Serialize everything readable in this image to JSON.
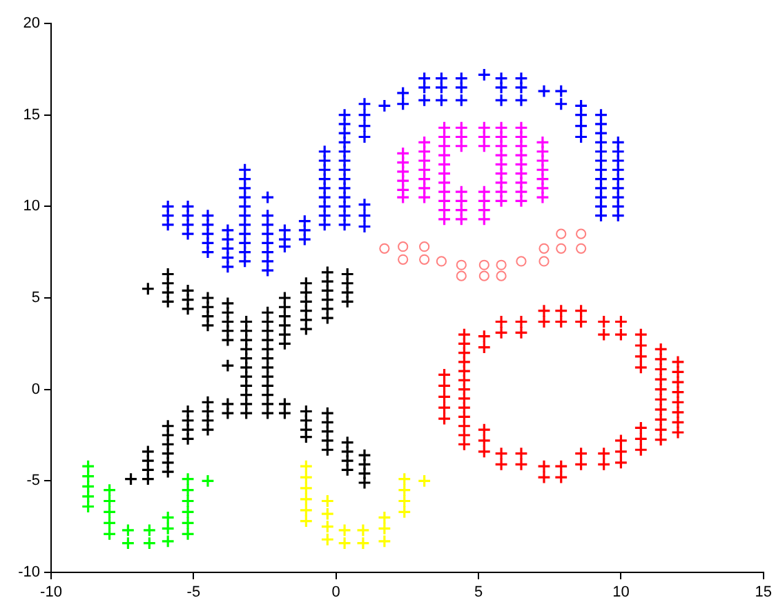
{
  "chart_data": {
    "type": "scatter",
    "xlim": [
      -10,
      15
    ],
    "xticks": [
      -10,
      -5,
      0,
      5,
      10,
      15
    ],
    "ylim": [
      -10,
      20
    ],
    "yticks": [
      -10,
      -5,
      0,
      5,
      10,
      15,
      20
    ],
    "grid": false,
    "legend": false,
    "series": [
      {
        "color": "#0000ff",
        "marker": "cross",
        "x": [
          -5.9,
          -5.9,
          -5.9,
          -5.2,
          -5.2,
          -5.2,
          -5.2,
          -4.5,
          -4.5,
          -4.5,
          -4.5,
          -4.5,
          -3.8,
          -3.8,
          -3.8,
          -3.8,
          -3.8,
          -3.2,
          -3.2,
          -3.2,
          -3.2,
          -3.2,
          -3.2,
          -3.2,
          -3.2,
          -3.2,
          -3.2,
          -3.2,
          -2.4,
          -2.4,
          -2.4,
          -2.4,
          -2.4,
          -2.4,
          -2.4,
          -2.4,
          -1.8,
          -1.8,
          -1.8,
          -1.1,
          -1.1,
          -1.1,
          -0.4,
          -0.4,
          -0.4,
          -0.4,
          -0.4,
          -0.4,
          -0.4,
          -0.4,
          -0.4,
          0.3,
          0.3,
          0.3,
          0.3,
          0.3,
          0.3,
          0.3,
          0.3,
          0.3,
          0.3,
          0.3,
          0.3,
          0.3,
          1.0,
          1.0,
          1.0,
          1.0,
          1.0,
          1.0,
          1.0,
          1.7,
          2.35,
          2.35,
          3.1,
          3.1,
          3.1,
          3.7,
          3.7,
          3.7,
          4.4,
          4.4,
          4.4,
          5.2,
          5.8,
          5.8,
          5.8,
          6.5,
          6.5,
          6.5,
          7.3,
          7.9,
          7.9,
          8.6,
          8.6,
          8.6,
          8.6,
          9.3,
          9.3,
          9.3,
          9.3,
          9.3,
          9.3,
          9.3,
          9.3,
          9.3,
          9.3,
          9.3,
          9.3,
          9.9,
          9.9,
          9.9,
          9.9,
          9.9,
          9.9,
          9.9,
          9.9,
          9.9
        ],
        "values": [
          10,
          9.5,
          9,
          10,
          9.5,
          9,
          8.5,
          9.5,
          9,
          8.5,
          8,
          7.5,
          8.7,
          8.2,
          7.7,
          7.2,
          6.7,
          12,
          11.5,
          11,
          10.5,
          10,
          9.5,
          9,
          8.5,
          8,
          7.5,
          7,
          10.5,
          9.5,
          9,
          8.5,
          8,
          7.5,
          7,
          6.5,
          8.7,
          8.2,
          7.8,
          9.2,
          8.7,
          8.2,
          13,
          12.5,
          12,
          11.5,
          11,
          10.5,
          10,
          9.5,
          9,
          15,
          14.5,
          14,
          13.5,
          13,
          12.5,
          12,
          11.5,
          11,
          10.5,
          10,
          9.5,
          9,
          15.6,
          15,
          14.4,
          13.8,
          10.1,
          9.5,
          8.9,
          15.5,
          16.2,
          15.6,
          17,
          16.5,
          15.8,
          17,
          16.5,
          15.8,
          17,
          16.5,
          15.8,
          17.2,
          17,
          16.5,
          15.8,
          17,
          16.5,
          15.8,
          16.3,
          16.3,
          15.6,
          15.5,
          15,
          14.4,
          13.8,
          15,
          14.5,
          14,
          13.5,
          13,
          12.5,
          12,
          11.5,
          11,
          10.5,
          10,
          9.5,
          13.5,
          13,
          12.5,
          12,
          11.5,
          11,
          10.5,
          10,
          9.5
        ]
      },
      {
        "color": "#ff00ff",
        "marker": "cross",
        "x": [
          2.35,
          2.35,
          2.35,
          2.35,
          2.35,
          2.35,
          3.1,
          3.1,
          3.1,
          3.1,
          3.1,
          3.1,
          3.1,
          3.8,
          3.8,
          3.8,
          3.8,
          3.8,
          3.8,
          3.8,
          3.8,
          3.8,
          3.8,
          3.8,
          4.4,
          4.4,
          4.4,
          4.4,
          4.4,
          4.4,
          4.4,
          5.2,
          5.2,
          5.2,
          5.2,
          5.2,
          5.2,
          5.2,
          5.8,
          5.8,
          5.8,
          5.8,
          5.8,
          5.8,
          5.8,
          5.8,
          5.8,
          6.5,
          6.5,
          6.5,
          6.5,
          6.5,
          6.5,
          6.5,
          6.5,
          6.5,
          7.25,
          7.25,
          7.25,
          7.25,
          7.25,
          7.25,
          7.25
        ],
        "values": [
          12.9,
          12.4,
          11.9,
          11.4,
          10.9,
          10.5,
          13.5,
          13,
          12.5,
          12,
          11.5,
          11,
          10.5,
          14.3,
          13.8,
          13.3,
          12.8,
          12.3,
          11.8,
          11.3,
          10.8,
          10.3,
          9.8,
          9.3,
          14.3,
          13.8,
          13.3,
          10.8,
          10.3,
          9.8,
          9.3,
          14.3,
          13.8,
          13.3,
          10.8,
          10.3,
          9.8,
          9.3,
          14.3,
          13.8,
          13.3,
          12.8,
          12.3,
          11.8,
          11.3,
          10.8,
          10.3,
          14.3,
          13.8,
          13.3,
          12.8,
          12.3,
          11.8,
          11.3,
          10.8,
          10.3,
          13.5,
          13,
          12.5,
          12,
          11.5,
          11,
          10.5
        ]
      },
      {
        "color": "#ff8080",
        "marker": "circle",
        "x": [
          1.7,
          2.35,
          2.35,
          3.1,
          3.1,
          3.7,
          4.4,
          4.4,
          5.2,
          5.2,
          5.8,
          5.8,
          6.5,
          7.3,
          7.3,
          7.9,
          7.9,
          8.6,
          8.6
        ],
        "values": [
          7.7,
          7.8,
          7.1,
          7.8,
          7.1,
          7,
          6.8,
          6.2,
          6.8,
          6.2,
          6.8,
          6.2,
          7,
          7.7,
          7,
          8.5,
          7.7,
          8.5,
          7.7
        ]
      },
      {
        "color": "#000000",
        "marker": "cross",
        "x": [
          -6.6,
          -5.9,
          -5.9,
          -5.9,
          -5.9,
          -5.2,
          -5.2,
          -5.2,
          -4.5,
          -4.5,
          -4.5,
          -4.5,
          -3.8,
          -3.8,
          -3.8,
          -3.8,
          -3.8,
          -3.8,
          -3.15,
          -3.15,
          -3.15,
          -3.15,
          -3.15,
          -3.15,
          -3.15,
          -3.15,
          -3.15,
          -3.15,
          -3.15,
          -2.4,
          -2.4,
          -2.4,
          -2.4,
          -2.4,
          -2.4,
          -2.4,
          -2.4,
          -2.4,
          -2.4,
          -2.4,
          -2.4,
          -1.8,
          -1.8,
          -1.8,
          -1.8,
          -1.8,
          -1.8,
          -1.8,
          -1.8,
          -1.05,
          -1.05,
          -1.05,
          -1.05,
          -1.05,
          -1.05,
          -0.3,
          -0.3,
          -0.3,
          -0.3,
          -0.3,
          -0.3,
          0.4,
          0.4,
          0.4,
          0.4,
          -3.8,
          -3.8,
          -4.5,
          -4.5,
          -4.5,
          -4.5,
          -5.2,
          -5.2,
          -5.2,
          -5.2,
          -5.9,
          -5.9,
          -5.9,
          -5.9,
          -5.9,
          -5.9,
          -6.6,
          -6.6,
          -6.6,
          -6.6,
          -7.2,
          -1.05,
          -1.05,
          -1.05,
          -1.05,
          -0.3,
          -0.3,
          -0.3,
          -0.3,
          -0.3,
          0.4,
          0.4,
          0.4,
          0.4,
          1.0,
          1.0,
          1.0,
          1.0
        ],
        "values": [
          5.5,
          6.3,
          5.8,
          5.3,
          4.8,
          5.4,
          4.9,
          4.4,
          5,
          4.5,
          4,
          3.5,
          4.7,
          4.2,
          3.7,
          3.2,
          2.7,
          1.3,
          3.7,
          3.2,
          2.7,
          2.2,
          1.7,
          1.2,
          0.7,
          0.2,
          -0.3,
          -0.8,
          -1.3,
          4.2,
          3.7,
          3.2,
          2.7,
          2.2,
          1.7,
          1.2,
          0.7,
          0.2,
          -0.3,
          -0.8,
          -1.3,
          5,
          4.5,
          4,
          3.5,
          3,
          2.5,
          -0.8,
          -1.3,
          5.8,
          5.3,
          4.8,
          4.3,
          3.8,
          3.3,
          6.4,
          5.9,
          5.4,
          4.9,
          4.4,
          3.9,
          6.3,
          5.8,
          5.3,
          4.8,
          -0.8,
          -1.3,
          -0.7,
          -1.2,
          -1.7,
          -2.2,
          -1.2,
          -1.7,
          -2.2,
          -2.7,
          -2,
          -2.5,
          -3,
          -3.5,
          -4,
          -4.5,
          -3.4,
          -3.9,
          -4.4,
          -4.9,
          -4.9,
          -1.2,
          -1.7,
          -2.2,
          -2.6,
          -1.3,
          -1.8,
          -2.3,
          -2.8,
          -3.3,
          -2.9,
          -3.4,
          -3.9,
          -4.4,
          -3.6,
          -4.1,
          -4.6,
          -5.1
        ]
      },
      {
        "color": "#00ff00",
        "marker": "cross",
        "x": [
          -8.7,
          -8.7,
          -8.7,
          -8.7,
          -8.7,
          -7.95,
          -7.95,
          -7.95,
          -7.95,
          -7.95,
          -7.3,
          -7.3,
          -6.55,
          -6.55,
          -5.9,
          -5.9,
          -5.9,
          -5.2,
          -5.2,
          -5.2,
          -5.2,
          -5.2,
          -5.2,
          -4.5
        ],
        "values": [
          -4.2,
          -4.75,
          -5.3,
          -5.85,
          -6.4,
          -5.5,
          -6.1,
          -6.7,
          -7.3,
          -7.9,
          -7.7,
          -8.4,
          -7.7,
          -8.4,
          -7,
          -7.6,
          -8.3,
          -4.9,
          -5.5,
          -6.1,
          -6.7,
          -7.3,
          -7.9,
          -5
        ]
      },
      {
        "color": "#ffff00",
        "marker": "cross",
        "x": [
          -1.05,
          -1.05,
          -1.05,
          -1.05,
          -1.05,
          -1.05,
          -0.3,
          -0.3,
          -0.3,
          -0.3,
          0.3,
          0.3,
          0.95,
          0.95,
          1.7,
          1.7,
          1.7,
          2.4,
          2.4,
          2.4,
          2.4,
          3.1
        ],
        "values": [
          -4.2,
          -4.8,
          -5.4,
          -6,
          -6.6,
          -7.2,
          -6.1,
          -6.8,
          -7.5,
          -8.2,
          -7.7,
          -8.4,
          -7.7,
          -8.4,
          -7,
          -7.6,
          -8.3,
          -4.9,
          -5.5,
          -6.1,
          -6.7,
          -5
        ]
      },
      {
        "color": "#ff0000",
        "marker": "cross",
        "x": [
          3.8,
          3.8,
          3.8,
          3.8,
          3.8,
          4.5,
          4.5,
          4.5,
          4.5,
          4.5,
          4.5,
          4.5,
          4.5,
          4.5,
          4.5,
          4.5,
          4.5,
          4.5,
          5.2,
          5.2,
          5.2,
          5.2,
          5.2,
          5.8,
          5.8,
          5.8,
          5.8,
          6.5,
          6.5,
          6.5,
          6.5,
          7.3,
          7.3,
          7.3,
          7.3,
          7.9,
          7.9,
          7.9,
          7.9,
          8.6,
          8.6,
          8.6,
          8.6,
          9.4,
          9.4,
          9.4,
          9.4,
          10,
          10,
          10,
          10,
          10,
          10.7,
          10.7,
          10.7,
          10.7,
          10.7,
          10.7,
          10.7,
          11.4,
          11.4,
          11.4,
          11.4,
          11.4,
          11.4,
          11.4,
          11.4,
          11.4,
          11.4,
          12,
          12,
          12,
          12,
          12,
          12,
          12,
          12
        ],
        "values": [
          0.8,
          0.2,
          -0.4,
          -1,
          -1.6,
          3,
          2.5,
          2,
          1.5,
          1,
          0.5,
          0,
          -0.5,
          -1,
          -1.5,
          -2,
          -2.5,
          -3,
          2.9,
          2.3,
          -2.2,
          -2.8,
          -3.4,
          3.7,
          3.1,
          -3.5,
          -4.1,
          3.7,
          3.1,
          -3.5,
          -4.1,
          4.3,
          3.7,
          -4.2,
          -4.8,
          4.3,
          3.7,
          -4.2,
          -4.8,
          4.3,
          3.7,
          -3.5,
          -4.1,
          3.7,
          3,
          -3.5,
          -4.1,
          3.7,
          3,
          -2.8,
          -3.4,
          -4,
          3,
          2.4,
          1.8,
          1.2,
          -2.1,
          -2.7,
          -3.3,
          2.2,
          1.65,
          1.1,
          0.55,
          0,
          -0.55,
          -1.1,
          -1.65,
          -2.2,
          -2.75,
          1.5,
          0.95,
          0.4,
          -0.15,
          -0.7,
          -1.25,
          -1.8,
          -2.35
        ]
      }
    ]
  }
}
